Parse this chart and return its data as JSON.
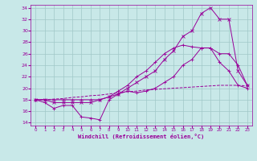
{
  "xlabel": "Windchill (Refroidissement éolien,°C)",
  "bg_color": "#c8e8e8",
  "grid_color": "#a0c8c8",
  "line_color": "#990099",
  "xlim": [
    -0.5,
    23.5
  ],
  "ylim": [
    13.5,
    34.5
  ],
  "xticks": [
    0,
    1,
    2,
    3,
    4,
    5,
    6,
    7,
    8,
    9,
    10,
    11,
    12,
    13,
    14,
    15,
    16,
    17,
    18,
    19,
    20,
    21,
    22,
    23
  ],
  "yticks": [
    14,
    16,
    18,
    20,
    22,
    24,
    26,
    28,
    30,
    32,
    34
  ],
  "series1_x": [
    0,
    1,
    2,
    3,
    4,
    5,
    6,
    7,
    8,
    9,
    10,
    11,
    12,
    13,
    14,
    15,
    16,
    17,
    18,
    19,
    20,
    21,
    22,
    23
  ],
  "series1_y": [
    18,
    17.5,
    16.5,
    17.0,
    17.0,
    15.0,
    14.8,
    14.5,
    18.0,
    19.0,
    19.5,
    19.2,
    19.5,
    20.0,
    21.0,
    22.0,
    24.0,
    25.0,
    27.0,
    27.0,
    26.0,
    26.0,
    24.0,
    20.5
  ],
  "series2_x": [
    0,
    1,
    2,
    3,
    4,
    5,
    6,
    7,
    8,
    9,
    10,
    11,
    12,
    13,
    14,
    15,
    16,
    17,
    18,
    19,
    20,
    21,
    22,
    23
  ],
  "series2_y": [
    18,
    18,
    17.5,
    17.5,
    17.5,
    17.5,
    17.5,
    18.0,
    18.5,
    19.0,
    20.0,
    21.0,
    22.0,
    23.0,
    25.0,
    26.5,
    29.0,
    30.0,
    33.0,
    34.0,
    32.0,
    32.0,
    23.0,
    20.5
  ],
  "series3_x": [
    0,
    1,
    2,
    3,
    4,
    5,
    6,
    7,
    8,
    9,
    10,
    11,
    12,
    13,
    14,
    15,
    16,
    17,
    18,
    19,
    20,
    21,
    22,
    23
  ],
  "series3_y": [
    18,
    18,
    18,
    18,
    18,
    18,
    18,
    18,
    18.5,
    19.5,
    20.5,
    22.0,
    23.0,
    24.5,
    26.0,
    27.0,
    27.5,
    27.2,
    27.0,
    27.0,
    24.5,
    23.0,
    20.5,
    20.0
  ],
  "series4_x": [
    0,
    1,
    2,
    3,
    4,
    5,
    6,
    7,
    8,
    9,
    10,
    11,
    12,
    13,
    14,
    15,
    16,
    17,
    18,
    19,
    20,
    21,
    22,
    23
  ],
  "series4_y": [
    18,
    18,
    18.1,
    18.2,
    18.4,
    18.5,
    18.7,
    18.8,
    19.0,
    19.2,
    19.4,
    19.5,
    19.7,
    19.8,
    19.9,
    20.0,
    20.1,
    20.2,
    20.3,
    20.4,
    20.5,
    20.5,
    20.5,
    20.4
  ]
}
